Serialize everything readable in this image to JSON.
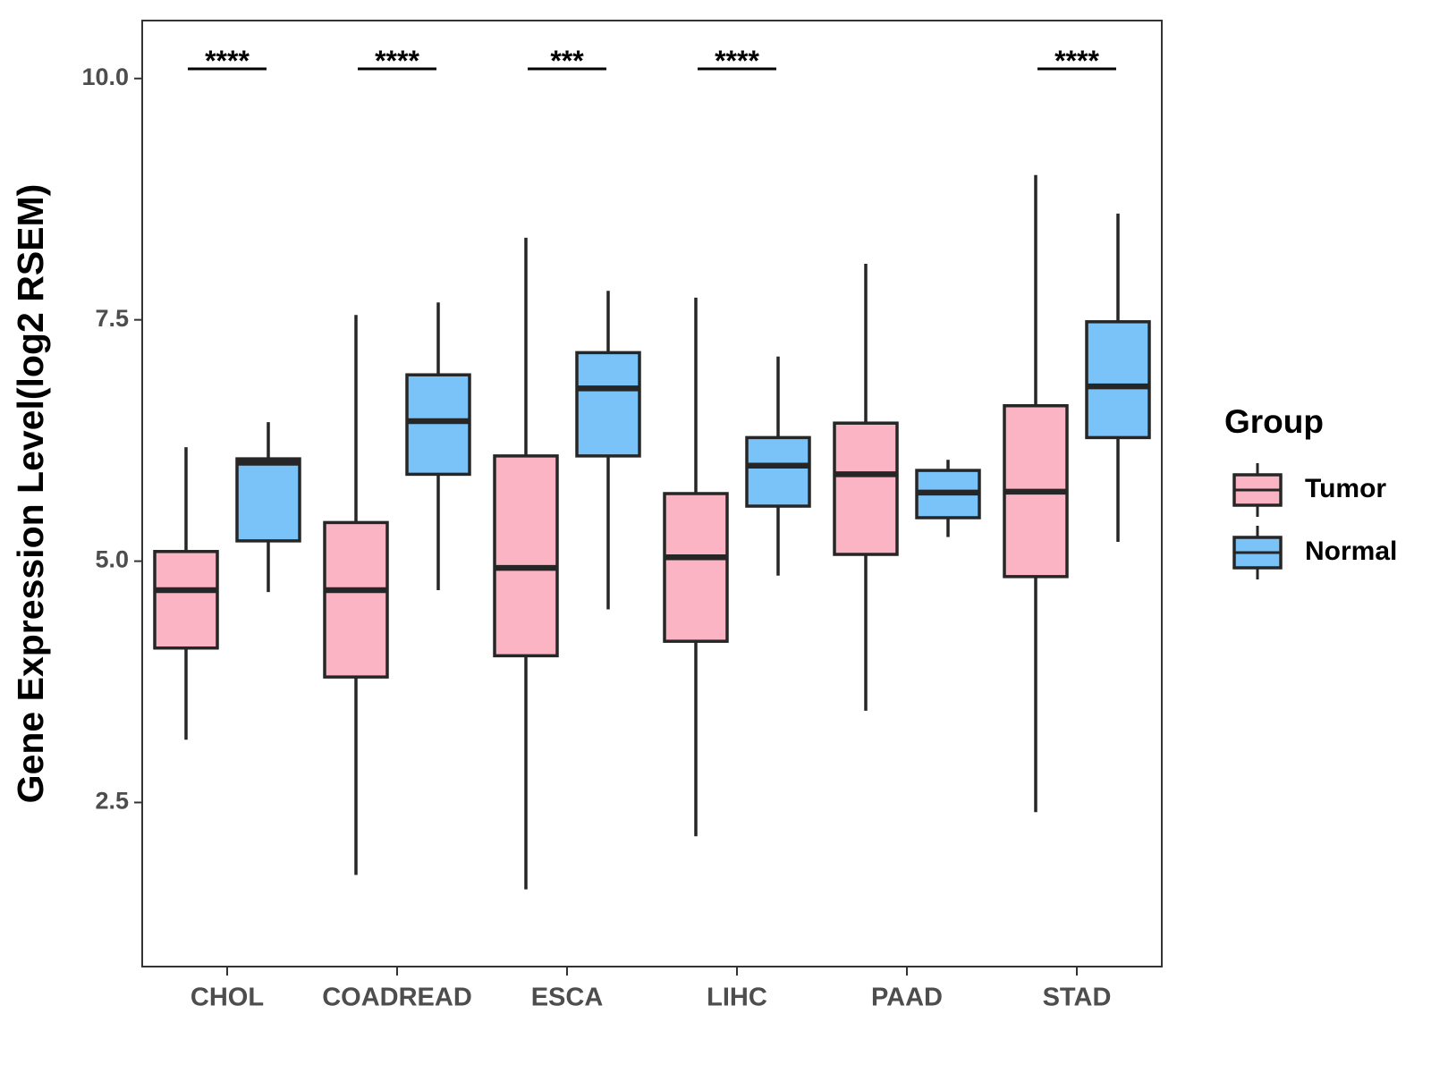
{
  "chart_data": {
    "type": "boxplot",
    "title": "",
    "xlabel": "",
    "ylabel": "Gene Expression Level(log2 RSEM)",
    "ylim": [
      0.8,
      10.6
    ],
    "yticks": [
      2.5,
      5.0,
      7.5,
      10.0
    ],
    "ytick_labels": [
      "2.5",
      "5.0",
      "7.5",
      "10.0"
    ],
    "grid": false,
    "categories": [
      "CHOL",
      "COADREAD",
      "ESCA",
      "LIHC",
      "PAAD",
      "STAD"
    ],
    "legend": {
      "title": "Group",
      "position": "right",
      "entries": [
        {
          "name": "Tumor",
          "color": "#fbb4c4"
        },
        {
          "name": "Normal",
          "color": "#7ac3f9"
        }
      ]
    },
    "series": [
      {
        "name": "Tumor",
        "color": "#fbb4c4",
        "boxes": [
          {
            "min": 3.15,
            "q1": 4.1,
            "median": 4.7,
            "q3": 5.1,
            "max": 6.18
          },
          {
            "min": 1.75,
            "q1": 3.8,
            "median": 4.7,
            "q3": 5.4,
            "max": 7.55
          },
          {
            "min": 1.6,
            "q1": 4.02,
            "median": 4.93,
            "q3": 6.09,
            "max": 8.35
          },
          {
            "min": 2.15,
            "q1": 4.17,
            "median": 5.04,
            "q3": 5.7,
            "max": 7.73
          },
          {
            "min": 3.45,
            "q1": 5.07,
            "median": 5.9,
            "q3": 6.43,
            "max": 8.08
          },
          {
            "min": 2.4,
            "q1": 4.84,
            "median": 5.72,
            "q3": 6.61,
            "max": 9.0
          }
        ]
      },
      {
        "name": "Normal",
        "color": "#7ac3f9",
        "boxes": [
          {
            "min": 4.68,
            "q1": 5.21,
            "median": 6.02,
            "q3": 6.06,
            "max": 6.44
          },
          {
            "min": 4.7,
            "q1": 5.9,
            "median": 6.45,
            "q3": 6.93,
            "max": 7.68
          },
          {
            "min": 4.5,
            "q1": 6.09,
            "median": 6.79,
            "q3": 7.16,
            "max": 7.8
          },
          {
            "min": 4.85,
            "q1": 5.57,
            "median": 5.99,
            "q3": 6.28,
            "max": 7.12
          },
          {
            "min": 5.25,
            "q1": 5.45,
            "median": 5.71,
            "q3": 5.94,
            "max": 6.05
          },
          {
            "min": 5.2,
            "q1": 6.28,
            "median": 6.81,
            "q3": 7.48,
            "max": 8.6
          }
        ]
      }
    ],
    "annotations": [
      {
        "category": "CHOL",
        "text": "****"
      },
      {
        "category": "COADREAD",
        "text": "****"
      },
      {
        "category": "ESCA",
        "text": "***"
      },
      {
        "category": "LIHC",
        "text": "****"
      },
      {
        "category": "PAAD",
        "text": ""
      },
      {
        "category": "STAD",
        "text": "****"
      }
    ],
    "annotation_y": 10.1
  }
}
